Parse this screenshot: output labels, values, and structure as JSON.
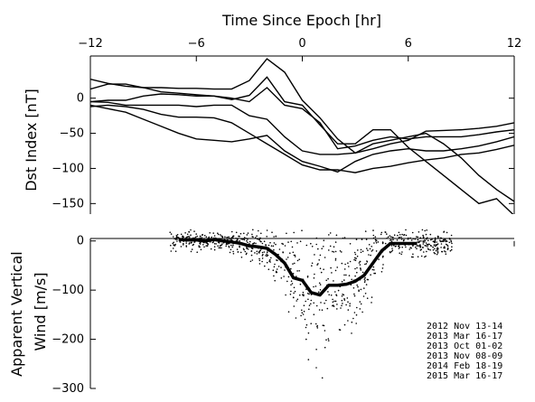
{
  "chart_data": [
    {
      "type": "line",
      "xlabel": "Time Since Epoch [hr]",
      "ylabel": "Dst Index [nT]",
      "xlim": [
        -12,
        12
      ],
      "ylim": [
        -165,
        60
      ],
      "xticks": [
        -12,
        -6,
        0,
        6,
        12
      ],
      "xtick_labels": [
        "−12",
        "−6",
        "0",
        "6",
        "12"
      ],
      "yticks": [
        0,
        -50,
        -100,
        -150
      ],
      "ytick_labels": [
        "0",
        "−50",
        "−100",
        "−150"
      ],
      "x": [
        -12,
        -11,
        -10,
        -9,
        -8,
        -7,
        -6,
        -5,
        -4,
        -3,
        -2,
        -1,
        0,
        1,
        2,
        3,
        4,
        5,
        6,
        7,
        8,
        9,
        10,
        11,
        12
      ],
      "series": [
        {
          "values": [
            27,
            21,
            17,
            15,
            15,
            14,
            14,
            13,
            13,
            25,
            56,
            37,
            -3,
            -28,
            -58,
            -78,
            -65,
            -60,
            -55,
            -50,
            -65,
            -85,
            -110,
            -130,
            -147
          ]
        },
        {
          "values": [
            13,
            20,
            20,
            15,
            9,
            7,
            5,
            3,
            -2,
            4,
            30,
            -5,
            -10,
            -38,
            -65,
            -65,
            -45,
            -45,
            -70,
            -90,
            -110,
            -130,
            -150,
            -143,
            -167
          ]
        },
        {
          "values": [
            -5,
            -3,
            -3,
            3,
            6,
            5,
            3,
            3,
            0,
            -5,
            15,
            -10,
            -15,
            -35,
            -72,
            -68,
            -60,
            -55,
            -58,
            -55,
            -55,
            -55,
            -52,
            -48,
            -45
          ]
        },
        {
          "values": [
            -5,
            -6,
            -10,
            -10,
            -10,
            -10,
            -12,
            -10,
            -10,
            -25,
            -30,
            -55,
            -75,
            -80,
            -80,
            -78,
            -72,
            -65,
            -60,
            -47,
            -46,
            -45,
            -43,
            -40,
            -35
          ]
        },
        {
          "values": [
            -10,
            -15,
            -20,
            -30,
            -40,
            -50,
            -58,
            -60,
            -62,
            -58,
            -53,
            -75,
            -90,
            -97,
            -105,
            -90,
            -80,
            -75,
            -72,
            -75,
            -75,
            -72,
            -68,
            -62,
            -55
          ]
        },
        {
          "values": [
            -12,
            -10,
            -12,
            -16,
            -23,
            -27,
            -27,
            -28,
            -35,
            -50,
            -65,
            -80,
            -95,
            -102,
            -102,
            -106,
            -100,
            -97,
            -92,
            -88,
            -85,
            -80,
            -78,
            -73,
            -67
          ]
        }
      ]
    },
    {
      "type": "scatter",
      "ylabel": "Apparent Vertical\nWind [m/s]",
      "ylabel_lines": [
        "Apparent Vertical",
        "Wind [m/s]"
      ],
      "xlim": [
        -12,
        12
      ],
      "ylim": [
        -300,
        5
      ],
      "yticks": [
        0,
        -100,
        -200,
        -300
      ],
      "ytick_labels": [
        "0",
        "−100",
        "−200",
        "−300"
      ],
      "mean_line": {
        "x": [
          -7,
          -6.5,
          -6,
          -5.5,
          -5,
          -4.5,
          -4,
          -3.5,
          -3,
          -2.5,
          -2,
          -1.5,
          -1,
          -0.5,
          0,
          0.5,
          1,
          1.5,
          2,
          2.5,
          3,
          3.5,
          4,
          4.5,
          5,
          5.5,
          6,
          6.5
        ],
        "y": [
          3,
          2,
          2,
          0,
          3,
          0,
          -2,
          -5,
          -10,
          -12,
          -15,
          -28,
          -45,
          -75,
          -80,
          -105,
          -110,
          -90,
          -90,
          -88,
          -82,
          -70,
          -45,
          -20,
          -5,
          -5,
          -5,
          -5
        ]
      },
      "scatter_band": {
        "x_range": [
          -7.5,
          8.5
        ],
        "note_values": "individual measurements scattered around the mean curve"
      },
      "legend_entries": [
        "2012 Nov 13-14",
        "2013 Mar 16-17",
        "2013 Oct 01-02",
        "2013 Nov 08-09",
        "2014 Feb 18-19",
        "2015 Mar 16-17"
      ],
      "legend_position": "bottom-right"
    }
  ],
  "colors": {
    "line": "#000000",
    "background": "#ffffff"
  }
}
